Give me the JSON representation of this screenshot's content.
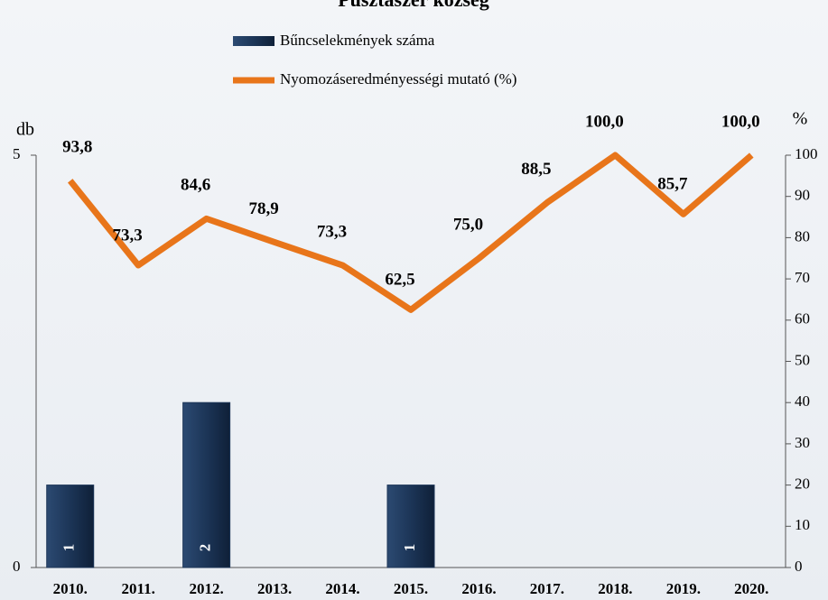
{
  "chart_data": {
    "type": "bar",
    "title": "Pusztaszer község",
    "y_label": "db",
    "y2_label": "%",
    "categories": [
      "2010.",
      "2011.",
      "2012.",
      "2013.",
      "2014.",
      "2015.",
      "2016.",
      "2017.",
      "2018.",
      "2019.",
      "2020."
    ],
    "series": [
      {
        "name": "Bűncselekmények száma",
        "type": "bar",
        "color": "#1c3557",
        "values": [
          1,
          null,
          2,
          null,
          null,
          1,
          null,
          null,
          null,
          null,
          null
        ]
      },
      {
        "name": "Nyomozáseredményességi mutató (%)",
        "type": "line",
        "axis": "y2",
        "color": "#e8751a",
        "values": [
          93.8,
          73.3,
          84.6,
          78.9,
          73.3,
          62.5,
          75.0,
          88.5,
          100.0,
          85.7,
          100.0
        ],
        "value_labels": [
          "93,8",
          "73,3",
          "84,6",
          "78,9",
          "73,3",
          "62,5",
          "75,0",
          "88,5",
          "100,0",
          "85,7",
          "100,0"
        ]
      }
    ],
    "ylim": [
      0,
      5
    ],
    "yticks": [
      0,
      5
    ],
    "y2lim": [
      0,
      100
    ],
    "y2ticks": [
      0,
      10,
      20,
      30,
      40,
      50,
      60,
      70,
      80,
      90,
      100
    ]
  }
}
